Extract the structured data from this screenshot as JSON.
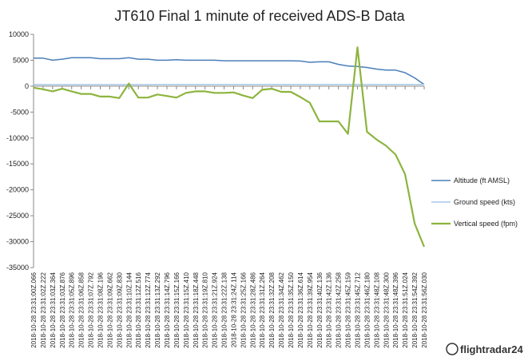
{
  "chart_data": {
    "type": "line",
    "title": "JT610 Final 1 minute of received ADS-B Data",
    "categories": [
      "2018-10-28 23:31:00Z.066",
      "2018-10-28 23:31:02Z.222",
      "2018-10-28 23:31:03Z.364",
      "2018-10-28 23:31:03Z.876",
      "2018-10-28 23:31:05Z.896",
      "2018-10-28 23:31:06Z.858",
      "2018-10-28 23:31:07Z.792",
      "2018-10-28 23:31:08Z.196",
      "2018-10-28 23:31:09Z.662",
      "2018-10-28 23:31:09Z.830",
      "2018-10-28 23:31:10Z.144",
      "2018-10-28 23:31:12Z.516",
      "2018-10-28 23:31:12Z.774",
      "2018-10-28 23:31:13Z.292",
      "2018-10-28 23:31:14Z.796",
      "2018-10-28 23:31:15Z.166",
      "2018-10-28 23:31:15Z.410",
      "2018-10-28 23:31:18Z.448",
      "2018-10-28 23:31:19Z.810",
      "2018-10-28 23:31:21Z.924",
      "2018-10-28 23:31:22Z.138",
      "2018-10-28 23:31:24Z.114",
      "2018-10-28 23:31:25Z.166",
      "2018-10-28 23:31:28Z.486",
      "2018-10-28 23:31:31Z.264",
      "2018-10-28 23:31:32Z.208",
      "2018-10-28 23:31:34Z.462",
      "2018-10-28 23:31:35Z.150",
      "2018-10-28 23:31:36Z.614",
      "2018-10-28 23:31:39Z.954",
      "2018-10-28 23:31:40Z.136",
      "2018-10-28 23:31:42Z.136",
      "2018-10-28 23:31:42Z.258",
      "2018-10-28 23:31:45Z.159",
      "2018-10-28 23:31:45Z.712",
      "2018-10-28 23:31:46Z.180",
      "2018-10-28 23:31:48Z.108",
      "2018-10-28 23:31:48Z.300",
      "2018-10-28 23:31:48Z.396",
      "2018-10-28 23:31:51Z.024",
      "2018-10-28 23:31:54Z.392",
      "2018-10-28 23:31:56Z.030"
    ],
    "series": [
      {
        "name": "Altitude (ft AMSL)",
        "color": "#4a7ebb",
        "values": [
          5400,
          5400,
          5000,
          5200,
          5500,
          5500,
          5500,
          5300,
          5300,
          5300,
          5500,
          5200,
          5200,
          5000,
          5000,
          5100,
          5000,
          5000,
          5000,
          5000,
          4900,
          4900,
          4900,
          4900,
          4900,
          4900,
          4900,
          4900,
          4850,
          4600,
          4700,
          4700,
          4200,
          3900,
          3800,
          3600,
          3300,
          3100,
          3100,
          2600,
          1600,
          300
        ]
      },
      {
        "name": "Ground speed (kts)",
        "color": "#a5c8e8",
        "values": [
          300,
          300,
          300,
          300,
          305,
          305,
          305,
          305,
          310,
          310,
          310,
          310,
          310,
          315,
          315,
          315,
          315,
          315,
          320,
          320,
          320,
          320,
          320,
          325,
          325,
          325,
          325,
          325,
          330,
          330,
          330,
          330,
          335,
          335,
          335,
          335,
          340,
          340,
          340,
          340,
          345,
          345
        ]
      },
      {
        "name": "Vertical speed (fpm)",
        "color": "#8db43e",
        "values": [
          -300,
          -600,
          -1000,
          -500,
          -1000,
          -1500,
          -1500,
          -2000,
          -2000,
          -2300,
          500,
          -2200,
          -2200,
          -1600,
          -1900,
          -2200,
          -1300,
          -1000,
          -1000,
          -1300,
          -1300,
          -1200,
          -1800,
          -2300,
          -700,
          -500,
          -1100,
          -1100,
          -2100,
          -3200,
          -6800,
          -6800,
          -6800,
          -9200,
          7500,
          -8800,
          -10300,
          -11500,
          -13200,
          -17000,
          -26500,
          -31000
        ]
      }
    ],
    "ylim": [
      -35000,
      10000
    ],
    "yticks": [
      10000,
      5000,
      0,
      -5000,
      -10000,
      -15000,
      -20000,
      -25000,
      -30000,
      -35000
    ],
    "legend": "right",
    "logo": "flightradar24"
  }
}
